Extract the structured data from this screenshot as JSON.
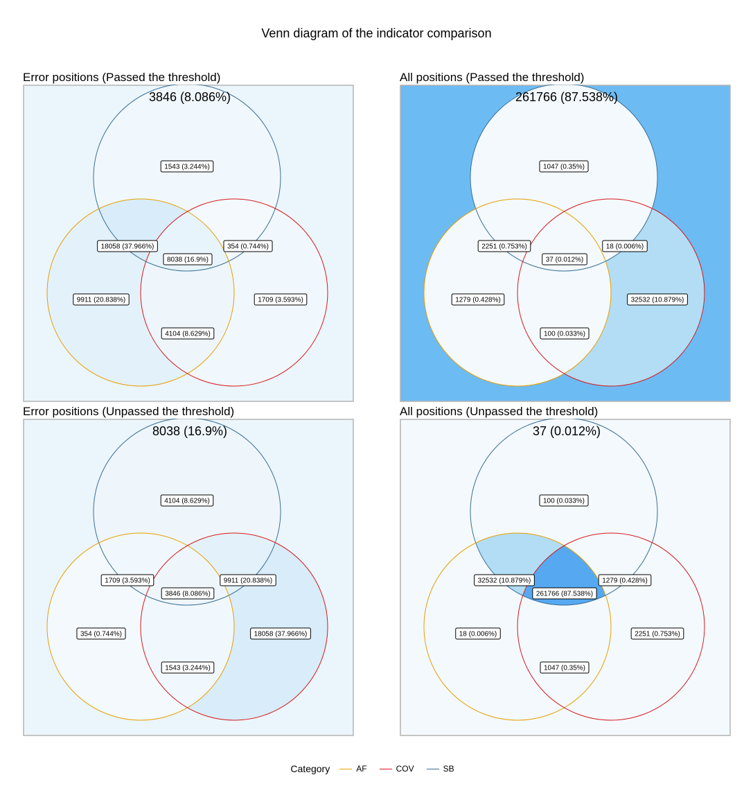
{
  "title": "Venn diagram of the indicator comparison",
  "legend": {
    "title": "Category",
    "items": [
      {
        "label": "AF",
        "color": "#E69F00"
      },
      {
        "label": "COV",
        "color": "#D7191C"
      },
      {
        "label": "SB",
        "color": "#3A6F94"
      }
    ]
  },
  "panels": [
    {
      "title": "Error positions (Passed the threshold)",
      "outside": "3846 (8.086%)",
      "outside_fill": "#EBF5FC",
      "regions": {
        "sb_only": {
          "label": "1543 (3.244%)",
          "fill": "#F1F8FD"
        },
        "af_sb": {
          "label": "18058 (37.966%)",
          "fill": "#D8ECF9"
        },
        "sb_cov": {
          "label": "354 (0.744%)",
          "fill": "#F3F9FD"
        },
        "all": {
          "label": "8038 (16.9%)",
          "fill": "#E8F4FC"
        },
        "af_only": {
          "label": "9911 (20.838%)",
          "fill": "#E3F1FB"
        },
        "cov_only": {
          "label": "1709 (3.593%)",
          "fill": "#F1F8FD"
        },
        "af_cov": {
          "label": "4104 (8.629%)",
          "fill": "#EEF6FC"
        }
      }
    },
    {
      "title": "All positions (Passed the threshold)",
      "outside": "261766 (87.538%)",
      "outside_fill": "#6DBBF3",
      "regions": {
        "sb_only": {
          "label": "1047 (0.35%)",
          "fill": "#F3F9FD"
        },
        "af_sb": {
          "label": "2251 (0.753%)",
          "fill": "#F3F9FD"
        },
        "sb_cov": {
          "label": "18 (0.006%)",
          "fill": "#F4F9FD"
        },
        "all": {
          "label": "37 (0.012%)",
          "fill": "#F4F9FD"
        },
        "af_only": {
          "label": "1279 (0.428%)",
          "fill": "#F3F9FD"
        },
        "cov_only": {
          "label": "32532 (10.879%)",
          "fill": "#B2DDF5"
        },
        "af_cov": {
          "label": "100 (0.033%)",
          "fill": "#F4F9FD"
        }
      }
    },
    {
      "title": "Error positions (Unpassed the threshold)",
      "outside": "8038 (16.9%)",
      "outside_fill": "#EBF5FC",
      "regions": {
        "sb_only": {
          "label": "4104 (8.629%)",
          "fill": "#EEF6FC"
        },
        "af_sb": {
          "label": "1709 (3.593%)",
          "fill": "#F1F8FD"
        },
        "sb_cov": {
          "label": "9911 (20.838%)",
          "fill": "#E3F1FB"
        },
        "all": {
          "label": "3846 (8.086%)",
          "fill": "#EEF6FC"
        },
        "af_only": {
          "label": "354 (0.744%)",
          "fill": "#F3F9FD"
        },
        "cov_only": {
          "label": "18058 (37.966%)",
          "fill": "#D8ECF9"
        },
        "af_cov": {
          "label": "1543 (3.244%)",
          "fill": "#F1F8FD"
        }
      }
    },
    {
      "title": "All positions (Unpassed the threshold)",
      "outside": "37 (0.012%)",
      "outside_fill": "#F4F9FD",
      "regions": {
        "sb_only": {
          "label": "100 (0.033%)",
          "fill": "#F4F9FD"
        },
        "af_sb": {
          "label": "32532 (10.879%)",
          "fill": "#B2DDF5"
        },
        "sb_cov": {
          "label": "1279 (0.428%)",
          "fill": "#F3F9FD"
        },
        "all": {
          "label": "261766 (87.538%)",
          "fill": "#56A9F1"
        },
        "af_only": {
          "label": "18 (0.006%)",
          "fill": "#F4F9FD"
        },
        "cov_only": {
          "label": "2251 (0.753%)",
          "fill": "#F3F9FD"
        },
        "af_cov": {
          "label": "1047 (0.35%)",
          "fill": "#F4F9FD"
        }
      }
    }
  ]
}
